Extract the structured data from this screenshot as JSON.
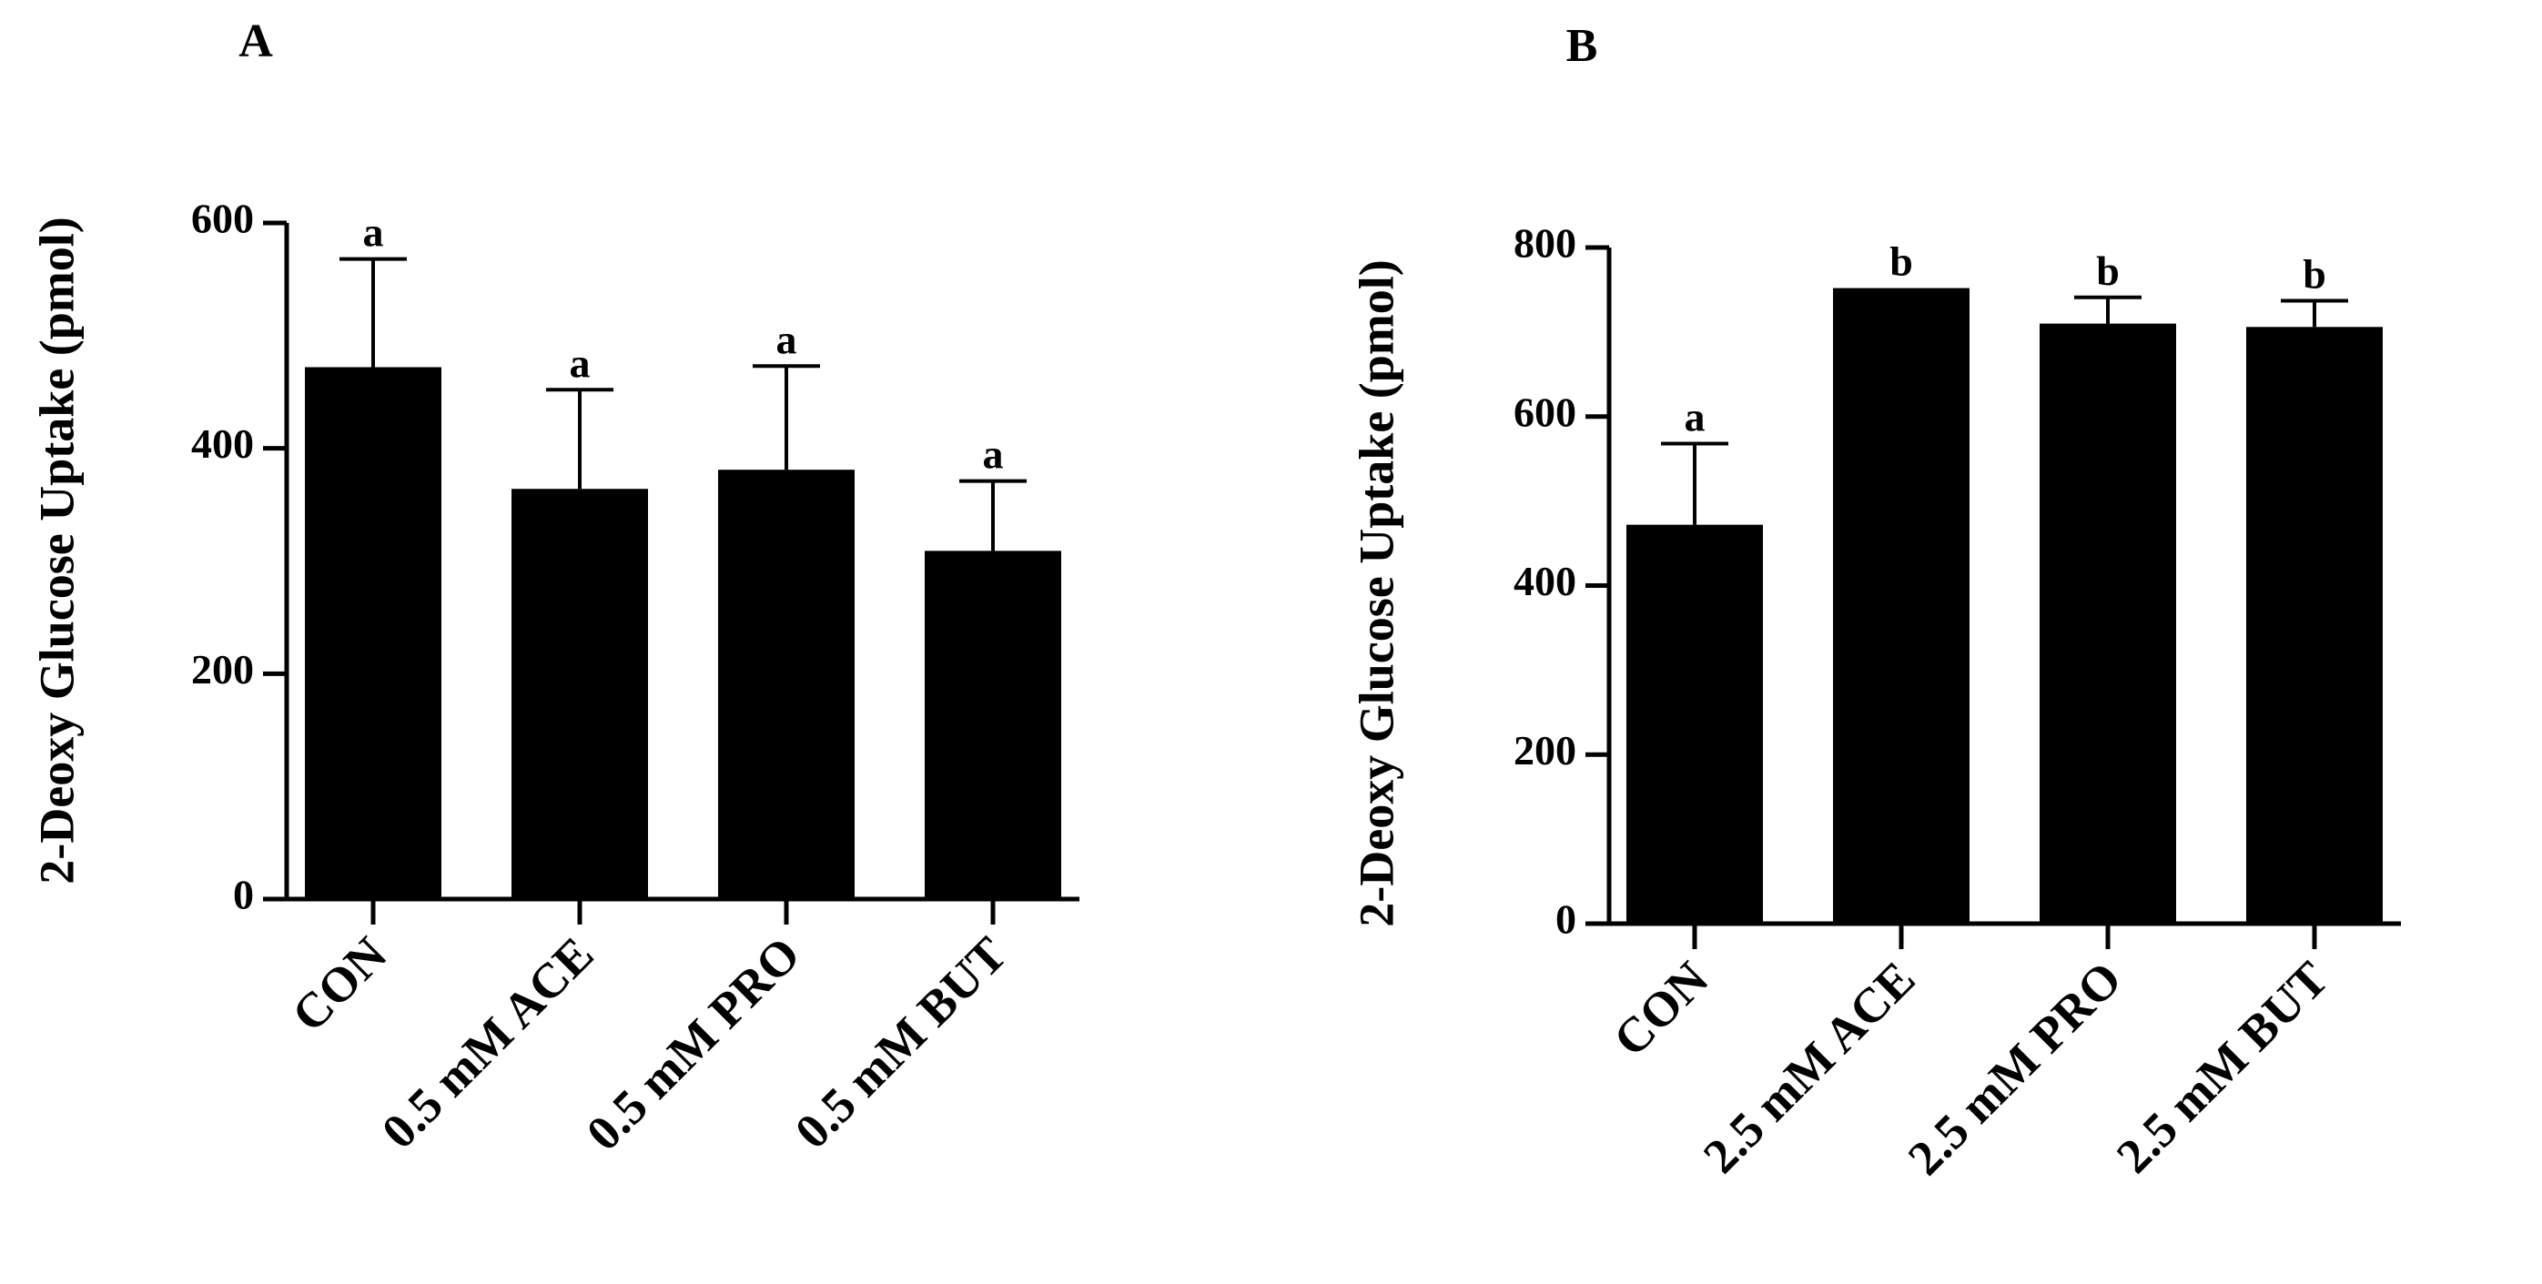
{
  "figure": {
    "panels": [
      "A",
      "B"
    ]
  },
  "chart_data": [
    {
      "panel": "A",
      "type": "bar",
      "title": "",
      "xlabel": "",
      "ylabel": "2-Deoxy Glucose Uptake (pmol)",
      "categories": [
        "CON",
        "0.5 mM ACE",
        "0.5 mM PRO",
        "0.5 mM BUT"
      ],
      "values": [
        472,
        364,
        381,
        309
      ],
      "errors": [
        96,
        88,
        92,
        62
      ],
      "annotations": [
        "a",
        "a",
        "a",
        "a"
      ],
      "ylim": [
        0,
        600
      ],
      "yticks": [
        0,
        200,
        400,
        600
      ],
      "grid": false,
      "bar_color": "#000000"
    },
    {
      "panel": "B",
      "type": "bar",
      "title": "",
      "xlabel": "",
      "ylabel": "2-Deoxy Glucose Uptake (pmol)",
      "categories": [
        "CON",
        "2.5 mM ACE",
        "2.5 mM PRO",
        "2.5 mM BUT"
      ],
      "values": [
        472,
        752,
        710,
        706
      ],
      "errors": [
        96,
        0,
        31,
        31
      ],
      "annotations": [
        "a",
        "b",
        "b",
        "b"
      ],
      "ylim": [
        0,
        800
      ],
      "yticks": [
        0,
        200,
        400,
        600,
        800
      ],
      "grid": false,
      "bar_color": "#000000"
    }
  ]
}
